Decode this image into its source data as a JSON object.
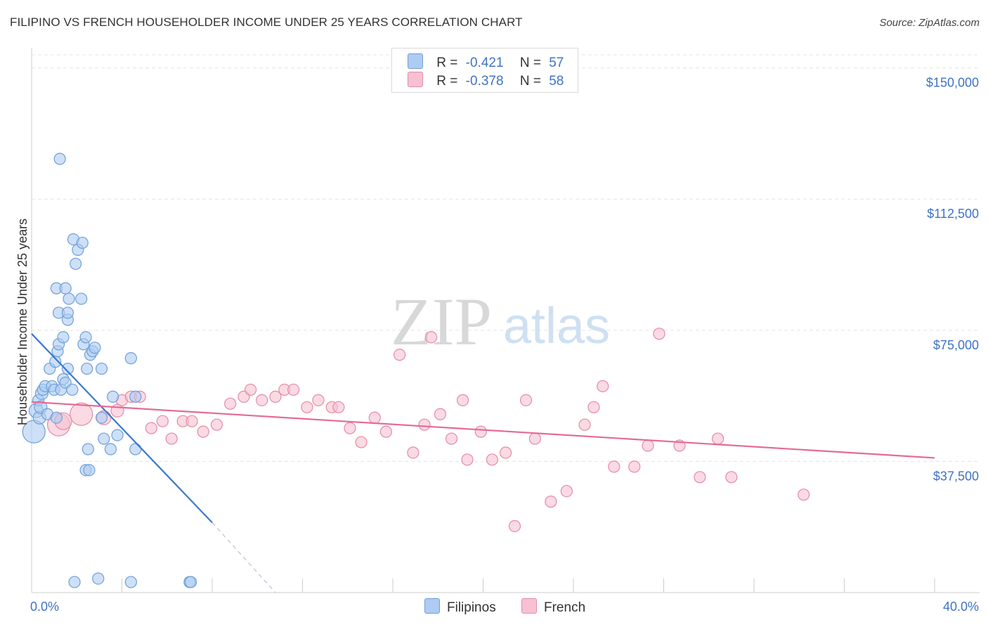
{
  "title": "FILIPINO VS FRENCH HOUSEHOLDER INCOME UNDER 25 YEARS CORRELATION CHART",
  "source": "Source: ZipAtlas.com",
  "watermark": {
    "zip": "ZIP",
    "atlas": "atlas"
  },
  "legend": {
    "rows": [
      {
        "r_label": "R =",
        "r_value": "-0.421",
        "n_label": "N =",
        "n_value": "57"
      },
      {
        "r_label": "R =",
        "r_value": "-0.378",
        "n_label": "N =",
        "n_value": "58"
      }
    ]
  },
  "bottom_legend": {
    "filipinos": "Filipinos",
    "french": "French"
  },
  "colors": {
    "filipinos_fill": "#aecbf2",
    "filipinos_stroke": "#6f9fd8",
    "filipinos_line": "#3a78d0",
    "french_fill": "#f7c1d1",
    "french_stroke": "#e58aa8",
    "french_line": "#e46b96",
    "tick_text": "#3f73c4",
    "grid": "#e3e3e3"
  },
  "chart_data": {
    "type": "scatter",
    "ylabel": "Householder Income Under 25 years",
    "x_tick_labels": [
      "0.0%",
      "40.0%"
    ],
    "y_ticks": [
      {
        "value": 37500,
        "label": "$37,500"
      },
      {
        "value": 75000,
        "label": "$75,000"
      },
      {
        "value": 112500,
        "label": "$112,500"
      },
      {
        "value": 150000,
        "label": "$150,000"
      }
    ],
    "xlim": [
      0,
      40
    ],
    "ylim": [
      0,
      153750
    ],
    "series": [
      {
        "name": "Filipinos",
        "points": [
          [
            0.1,
            46000,
            16
          ],
          [
            0.2,
            52000,
            10
          ],
          [
            0.3,
            55000,
            8
          ],
          [
            0.35,
            50000,
            9
          ],
          [
            0.4,
            53000,
            9
          ],
          [
            0.45,
            57000,
            9
          ],
          [
            0.5,
            58000,
            8
          ],
          [
            0.6,
            59000,
            8
          ],
          [
            0.7,
            51000,
            8
          ],
          [
            0.8,
            64000,
            8
          ],
          [
            0.9,
            59000,
            8
          ],
          [
            1.0,
            58000,
            8
          ],
          [
            1.05,
            66000,
            8
          ],
          [
            1.1,
            50000,
            8
          ],
          [
            1.15,
            69000,
            8
          ],
          [
            1.2,
            71000,
            8
          ],
          [
            1.3,
            58000,
            8
          ],
          [
            1.4,
            61000,
            8
          ],
          [
            1.1,
            87000,
            8
          ],
          [
            1.2,
            80000,
            8
          ],
          [
            1.25,
            124000,
            8
          ],
          [
            1.4,
            73000,
            8
          ],
          [
            1.5,
            60000,
            8
          ],
          [
            1.6,
            64000,
            8
          ],
          [
            1.5,
            87000,
            8
          ],
          [
            1.65,
            84000,
            8
          ],
          [
            1.6,
            78000,
            8
          ],
          [
            1.6,
            80000,
            8
          ],
          [
            1.8,
            58000,
            8
          ],
          [
            1.85,
            101000,
            8
          ],
          [
            1.95,
            94000,
            8
          ],
          [
            2.05,
            98000,
            8
          ],
          [
            2.25,
            100000,
            8
          ],
          [
            2.2,
            84000,
            8
          ],
          [
            2.3,
            71000,
            8
          ],
          [
            2.4,
            73000,
            8
          ],
          [
            2.45,
            64000,
            8
          ],
          [
            2.6,
            68000,
            8
          ],
          [
            2.7,
            69000,
            8
          ],
          [
            2.8,
            70000,
            8
          ],
          [
            2.5,
            41000,
            8
          ],
          [
            2.4,
            35000,
            8
          ],
          [
            2.55,
            35000,
            8
          ],
          [
            3.1,
            50000,
            8
          ],
          [
            3.1,
            64000,
            8
          ],
          [
            3.2,
            44000,
            8
          ],
          [
            3.5,
            41000,
            8
          ],
          [
            3.6,
            56000,
            8
          ],
          [
            3.8,
            45000,
            8
          ],
          [
            4.4,
            67000,
            8
          ],
          [
            4.6,
            41000,
            8
          ],
          [
            4.6,
            56000,
            8
          ],
          [
            1.9,
            3000,
            8
          ],
          [
            2.95,
            4000,
            8
          ],
          [
            4.4,
            3000,
            8
          ],
          [
            7.0,
            3000,
            8
          ],
          [
            7.05,
            3000,
            8
          ]
        ]
      },
      {
        "name": "French",
        "points": [
          [
            1.2,
            48000,
            16
          ],
          [
            2.2,
            51000,
            16
          ],
          [
            1.4,
            49000,
            12
          ],
          [
            3.2,
            50000,
            10
          ],
          [
            3.8,
            52000,
            9
          ],
          [
            4.0,
            55000,
            8
          ],
          [
            4.4,
            56000,
            8
          ],
          [
            4.8,
            56000,
            8
          ],
          [
            5.3,
            47000,
            8
          ],
          [
            5.8,
            49000,
            8
          ],
          [
            6.2,
            44000,
            8
          ],
          [
            6.7,
            49000,
            8
          ],
          [
            7.1,
            49000,
            8
          ],
          [
            7.6,
            46000,
            8
          ],
          [
            8.2,
            48000,
            8
          ],
          [
            8.8,
            54000,
            8
          ],
          [
            9.4,
            56000,
            8
          ],
          [
            9.7,
            58000,
            8
          ],
          [
            10.2,
            55000,
            8
          ],
          [
            10.8,
            56000,
            8
          ],
          [
            11.2,
            58000,
            8
          ],
          [
            11.6,
            58000,
            8
          ],
          [
            12.2,
            53000,
            8
          ],
          [
            12.7,
            55000,
            8
          ],
          [
            13.3,
            53000,
            8
          ],
          [
            13.6,
            53000,
            8
          ],
          [
            14.1,
            47000,
            8
          ],
          [
            14.6,
            43000,
            8
          ],
          [
            15.2,
            50000,
            8
          ],
          [
            15.7,
            46000,
            8
          ],
          [
            16.3,
            68000,
            8
          ],
          [
            16.9,
            40000,
            8
          ],
          [
            17.4,
            48000,
            8
          ],
          [
            17.7,
            73000,
            8
          ],
          [
            18.1,
            51000,
            8
          ],
          [
            18.6,
            44000,
            8
          ],
          [
            19.1,
            55000,
            8
          ],
          [
            19.3,
            38000,
            8
          ],
          [
            19.9,
            46000,
            8
          ],
          [
            20.4,
            38000,
            8
          ],
          [
            21.0,
            40000,
            8
          ],
          [
            21.4,
            19000,
            8
          ],
          [
            21.9,
            55000,
            8
          ],
          [
            22.3,
            44000,
            8
          ],
          [
            23.0,
            26000,
            8
          ],
          [
            23.7,
            29000,
            8
          ],
          [
            24.5,
            48000,
            8
          ],
          [
            24.9,
            53000,
            8
          ],
          [
            25.3,
            59000,
            8
          ],
          [
            25.8,
            36000,
            8
          ],
          [
            26.7,
            36000,
            8
          ],
          [
            27.3,
            42000,
            8
          ],
          [
            27.8,
            74000,
            8
          ],
          [
            28.7,
            42000,
            8
          ],
          [
            29.6,
            33000,
            8
          ],
          [
            30.4,
            44000,
            8
          ],
          [
            31.0,
            33000,
            8
          ],
          [
            34.2,
            28000,
            8
          ]
        ]
      }
    ],
    "trend_lines": [
      {
        "series": "Filipinos",
        "x1": 0,
        "y1": 74000,
        "x2": 8,
        "y2": 20000,
        "dash_to_x": 10.8,
        "dash_to_y": 0
      },
      {
        "series": "French",
        "x1": 0,
        "y1": 54500,
        "x2": 40,
        "y2": 38500
      }
    ],
    "grid": true,
    "legend_position": "top-center"
  }
}
